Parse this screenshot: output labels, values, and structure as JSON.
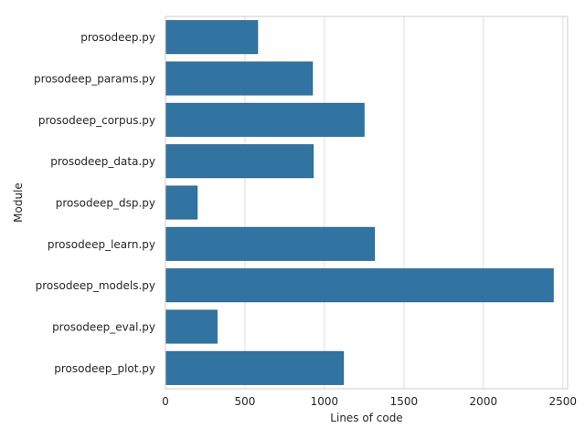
{
  "chart_data": {
    "type": "bar",
    "orientation": "horizontal",
    "categories": [
      "prosodeep.py",
      "prosodeep_params.py",
      "prosodeep_corpus.py",
      "prosodeep_data.py",
      "prosodeep_dsp.py",
      "prosodeep_learn.py",
      "prosodeep_models.py",
      "prosodeep_eval.py",
      "prosodeep_plot.py"
    ],
    "values": [
      580,
      925,
      1250,
      930,
      200,
      1315,
      2440,
      325,
      1120
    ],
    "xlabel": "Lines of code",
    "ylabel": "Module",
    "xlim": [
      0,
      2530
    ],
    "xticks": [
      0,
      500,
      1000,
      1500,
      2000,
      2500
    ],
    "grid": "vertical",
    "bar_color": "#3274a1",
    "bar_edge_color": "#2a5f86",
    "grid_color": "#dddddd",
    "spine_color": "#cccccc"
  }
}
